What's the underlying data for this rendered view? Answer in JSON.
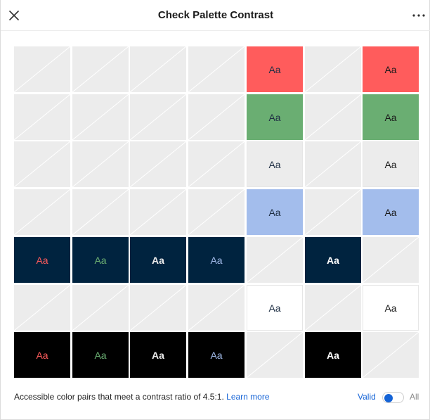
{
  "dialog": {
    "title": "Check Palette Contrast",
    "close_icon": "close-icon",
    "more_icon": "more-horizontal-icon"
  },
  "grid": {
    "sample_text": "Aa",
    "colors": {
      "red": "#ff5c5c",
      "green": "#6aae72",
      "light_gray": "#ececec",
      "blue": "#a3bdec",
      "navy": "#00233f",
      "white": "#ffffff",
      "black": "#000000",
      "navy_text": "#1f2f44"
    },
    "rows": [
      [
        null,
        null,
        null,
        null,
        {
          "bg": "#ff5c5c",
          "fg": "#1f2f44",
          "bold": false
        },
        null,
        {
          "bg": "#ff5c5c",
          "fg": "#1a1a1a",
          "bold": false
        }
      ],
      [
        null,
        null,
        null,
        null,
        {
          "bg": "#6aae72",
          "fg": "#1f2f44",
          "bold": false
        },
        null,
        {
          "bg": "#6aae72",
          "fg": "#1a1a1a",
          "bold": false
        }
      ],
      [
        null,
        null,
        null,
        null,
        {
          "bg": "#ececec",
          "fg": "#1f2f44",
          "bold": false
        },
        null,
        {
          "bg": "#ececec",
          "fg": "#1a1a1a",
          "bold": false
        }
      ],
      [
        null,
        null,
        null,
        null,
        {
          "bg": "#a3bdec",
          "fg": "#1f2f44",
          "bold": false
        },
        null,
        {
          "bg": "#a3bdec",
          "fg": "#1a1a1a",
          "bold": false
        }
      ],
      [
        {
          "bg": "#00233f",
          "fg": "#ff5c5c",
          "bold": false
        },
        {
          "bg": "#00233f",
          "fg": "#6aae72",
          "bold": false
        },
        {
          "bg": "#00233f",
          "fg": "#ececec",
          "bold": true
        },
        {
          "bg": "#00233f",
          "fg": "#a3bdec",
          "bold": false
        },
        null,
        {
          "bg": "#00233f",
          "fg": "#ffffff",
          "bold": true
        },
        null
      ],
      [
        null,
        null,
        null,
        null,
        {
          "bg": "#ffffff",
          "fg": "#1f2f44",
          "bold": false
        },
        null,
        {
          "bg": "#ffffff",
          "fg": "#1a1a1a",
          "bold": false
        }
      ],
      [
        {
          "bg": "#000000",
          "fg": "#ff5c5c",
          "bold": false
        },
        {
          "bg": "#000000",
          "fg": "#6aae72",
          "bold": false
        },
        {
          "bg": "#000000",
          "fg": "#ececec",
          "bold": true
        },
        {
          "bg": "#000000",
          "fg": "#a3bdec",
          "bold": false
        },
        null,
        {
          "bg": "#000000",
          "fg": "#ffffff",
          "bold": true
        },
        null
      ]
    ]
  },
  "footer": {
    "description": "Accessible color pairs that meet a contrast ratio of 4.5:1. ",
    "learn_more": "Learn more",
    "filter_valid": "Valid",
    "filter_all": "All",
    "toggle_state": "valid",
    "accent_color": "#1463d6"
  }
}
